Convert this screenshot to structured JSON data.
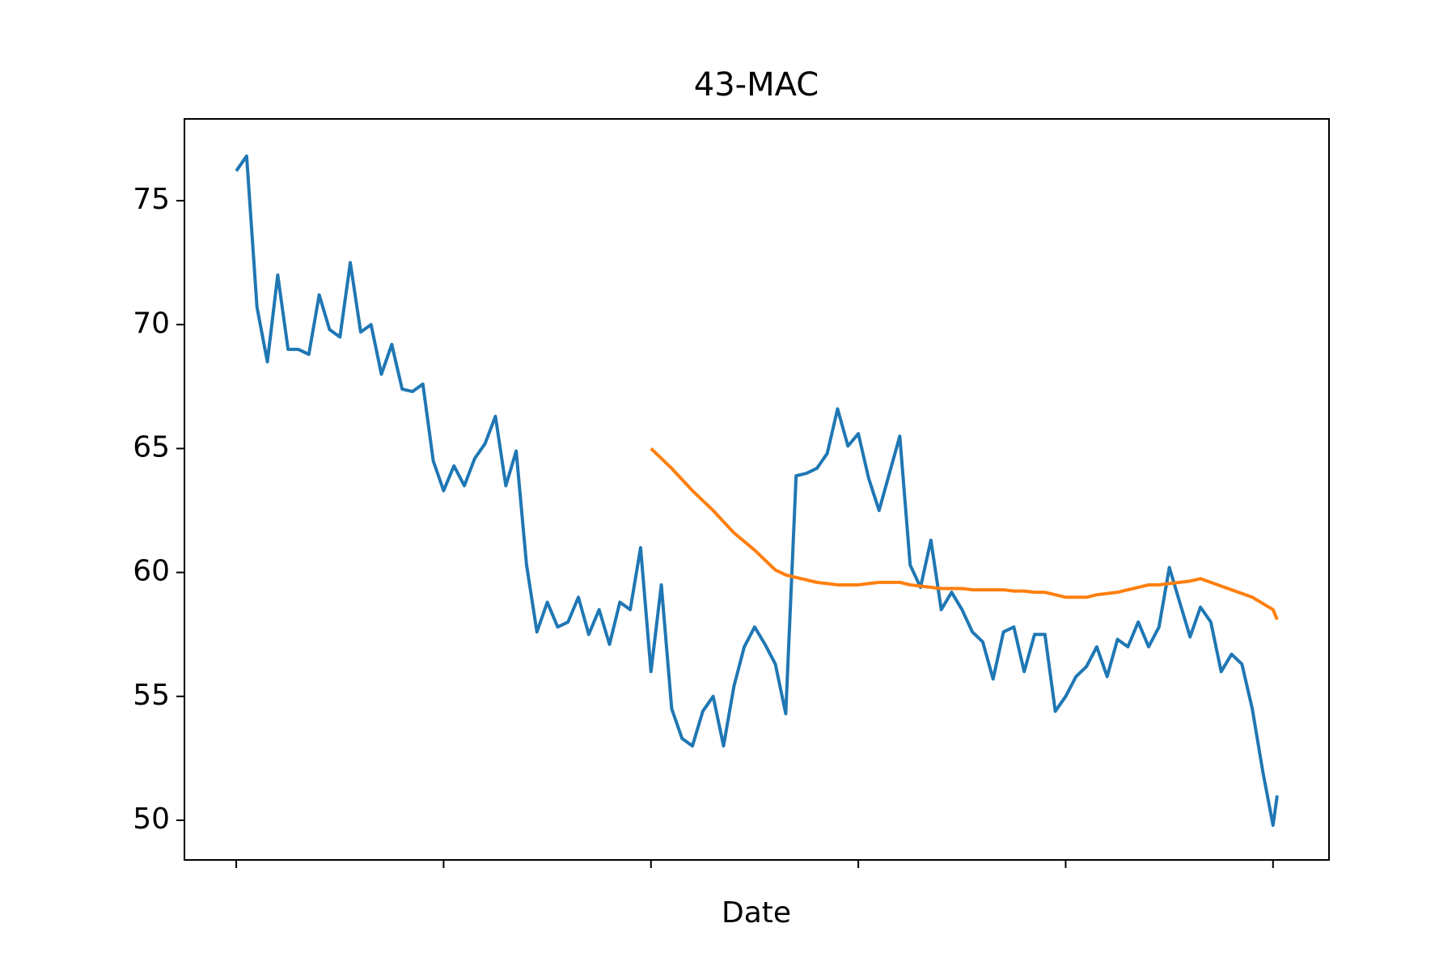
{
  "chart_data": {
    "type": "line",
    "title": "43-MAC",
    "xlabel": "Date",
    "x": [
      0,
      5,
      10,
      15,
      20,
      25,
      30,
      35,
      40,
      45,
      50,
      55,
      60,
      65,
      70,
      75,
      80,
      85,
      90,
      95,
      100,
      105,
      110,
      115,
      120,
      125,
      130,
      135,
      140,
      145,
      150,
      155,
      160,
      165,
      170,
      175,
      180,
      185,
      190,
      195,
      200,
      205,
      210,
      215,
      220,
      225,
      230,
      235,
      240,
      245,
      250,
      255,
      260,
      265,
      270,
      275,
      280,
      285,
      290,
      295,
      300,
      305,
      310,
      315,
      320,
      325,
      330,
      335,
      340,
      345,
      350,
      355,
      360,
      365,
      370,
      375,
      380,
      385,
      390,
      395,
      400,
      405,
      410,
      415,
      420,
      425,
      430,
      435,
      440,
      445,
      450,
      455,
      460,
      465,
      470,
      475,
      480,
      485,
      490,
      495,
      500,
      502
    ],
    "series": [
      {
        "color": "#1f77b4",
        "values": [
          76.2,
          76.8,
          70.7,
          68.5,
          72.0,
          69.0,
          69.0,
          68.8,
          71.2,
          69.8,
          69.5,
          72.5,
          69.7,
          70.0,
          68.0,
          69.2,
          67.4,
          67.3,
          67.6,
          64.5,
          63.3,
          64.3,
          63.5,
          64.6,
          65.2,
          66.3,
          63.5,
          64.9,
          60.3,
          57.6,
          58.8,
          57.8,
          58.0,
          59.0,
          57.5,
          58.5,
          57.1,
          58.8,
          58.5,
          61.0,
          56.0,
          59.5,
          54.5,
          53.3,
          53.0,
          54.4,
          55.0,
          53.0,
          55.4,
          57.0,
          57.8,
          57.1,
          56.3,
          54.3,
          63.9,
          64.0,
          64.2,
          64.8,
          66.6,
          65.1,
          65.6,
          63.8,
          62.5,
          64.0,
          65.5,
          60.3,
          59.4,
          61.3,
          58.5,
          59.2,
          58.5,
          57.6,
          57.2,
          55.7,
          57.6,
          57.8,
          56.0,
          57.5,
          57.5,
          54.4,
          55.0,
          55.8,
          56.2,
          57.0,
          55.8,
          57.3,
          57.0,
          58.0,
          57.0,
          57.8,
          60.2,
          58.8,
          57.4,
          58.6,
          58.0,
          56.0,
          56.7,
          56.3,
          54.5,
          52.0,
          49.8,
          51.0
        ]
      },
      {
        "color": "#ff7f0e",
        "values": [
          null,
          null,
          null,
          null,
          null,
          null,
          null,
          null,
          null,
          null,
          null,
          null,
          null,
          null,
          null,
          null,
          null,
          null,
          null,
          null,
          null,
          null,
          null,
          null,
          null,
          null,
          null,
          null,
          null,
          null,
          null,
          null,
          null,
          null,
          null,
          null,
          null,
          null,
          null,
          null,
          65.0,
          64.6,
          64.2,
          63.75,
          63.3,
          62.9,
          62.5,
          62.05,
          61.6,
          61.25,
          60.9,
          60.5,
          60.1,
          59.9,
          59.8,
          59.7,
          59.6,
          59.55,
          59.5,
          59.5,
          59.5,
          59.55,
          59.6,
          59.6,
          59.6,
          59.5,
          59.45,
          59.4,
          59.35,
          59.35,
          59.35,
          59.3,
          59.3,
          59.3,
          59.3,
          59.25,
          59.25,
          59.2,
          59.2,
          59.1,
          59.0,
          59.0,
          59.0,
          59.1,
          59.15,
          59.2,
          59.3,
          59.4,
          59.5,
          59.5,
          59.55,
          59.6,
          59.65,
          59.75,
          59.6,
          59.45,
          59.3,
          59.15,
          59.0,
          58.75,
          58.5,
          58.1
        ]
      }
    ],
    "xlim": [
      -25,
      527
    ],
    "xticks": [
      0,
      100,
      200,
      300,
      400,
      500
    ],
    "ylim": [
      48.4,
      78.3
    ],
    "yticks": [
      50,
      55,
      60,
      65,
      70,
      75
    ]
  }
}
